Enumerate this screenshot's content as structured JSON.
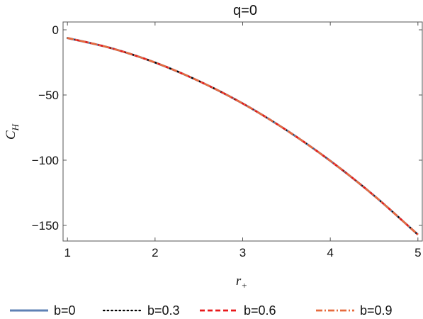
{
  "chart_data": {
    "type": "line",
    "title": "q=0",
    "xlabel": "r",
    "xlabel_sub": "+",
    "ylabel": "C",
    "ylabel_sub": "H",
    "xlim": [
      0.95,
      5.05
    ],
    "ylim": [
      -162,
      6
    ],
    "xticks": [
      1,
      2,
      3,
      4,
      5
    ],
    "yticks": [
      0,
      -50,
      -100,
      -150
    ],
    "xtick_labels": [
      "1",
      "2",
      "3",
      "4",
      "5"
    ],
    "ytick_labels": [
      "0",
      "−50",
      "−100",
      "−150"
    ],
    "grid": false,
    "legend_position": "bottom",
    "series": [
      {
        "name": "b=0",
        "color": "#5e81b5",
        "style": "solid",
        "x": [
          1,
          1.5,
          2,
          2.5,
          3,
          3.5,
          4,
          4.5,
          5
        ],
        "y": [
          -6.3,
          -14.1,
          -25.1,
          -39.3,
          -56.5,
          -77.0,
          -100.5,
          -127.2,
          -157.1
        ]
      },
      {
        "name": "b=0.3",
        "color": "#000000",
        "style": "dotted",
        "x": [
          1,
          1.5,
          2,
          2.5,
          3,
          3.5,
          4,
          4.5,
          5
        ],
        "y": [
          -6.3,
          -14.1,
          -25.1,
          -39.3,
          -56.5,
          -77.0,
          -100.5,
          -127.2,
          -157.1
        ]
      },
      {
        "name": "b=0.6",
        "color": "#e8191b",
        "style": "dashed",
        "x": [
          1,
          1.5,
          2,
          2.5,
          3,
          3.5,
          4,
          4.5,
          5
        ],
        "y": [
          -6.3,
          -14.1,
          -25.1,
          -39.3,
          -56.5,
          -77.0,
          -100.5,
          -127.2,
          -157.1
        ]
      },
      {
        "name": "b=0.9",
        "color": "#e66b3f",
        "style": "dashdot",
        "x": [
          1,
          1.5,
          2,
          2.5,
          3,
          3.5,
          4,
          4.5,
          5
        ],
        "y": [
          -6.3,
          -14.1,
          -25.1,
          -39.3,
          -56.5,
          -77.0,
          -100.5,
          -127.2,
          -157.1
        ]
      }
    ]
  }
}
